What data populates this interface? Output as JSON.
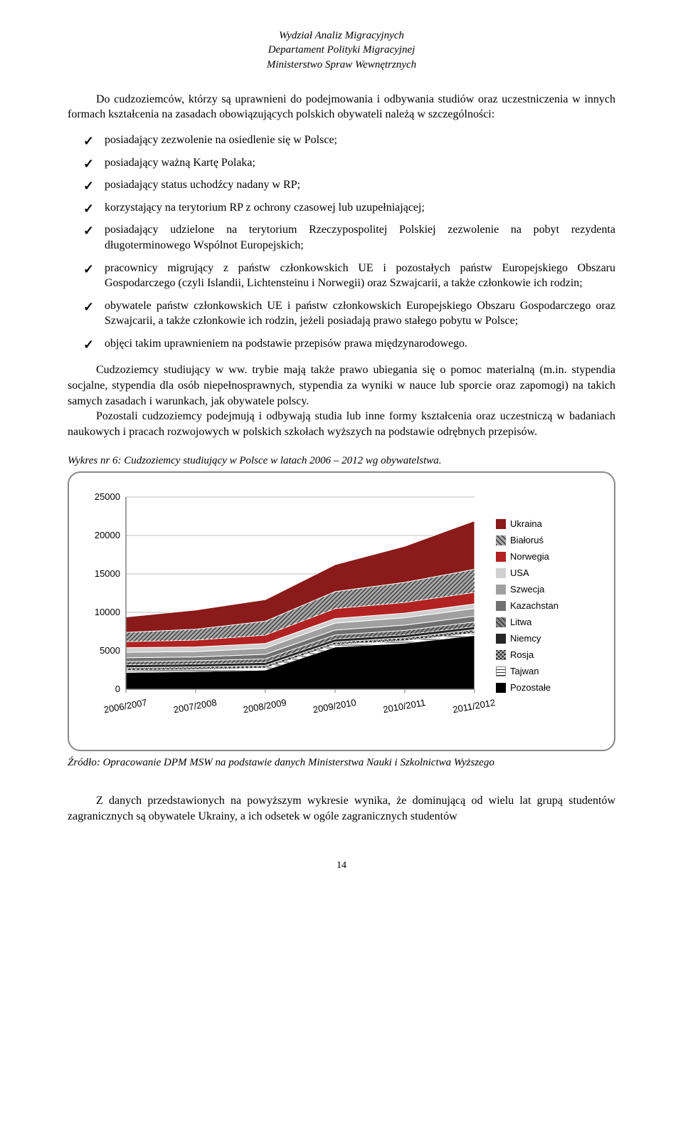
{
  "header": {
    "line1": "Wydział Analiz Migracyjnych",
    "line2": "Departament Polityki Migracyjnej",
    "line3": "Ministerstwo Spraw Wewnętrznych"
  },
  "intro": "Do cudzoziemców, którzy są uprawnieni do podejmowania i odbywania studiów oraz uczestniczenia w innych formach kształcenia na zasadach obowiązujących polskich obywateli należą w szczególności:",
  "bullets": [
    "posiadający zezwolenie na osiedlenie się w Polsce;",
    "posiadający ważną Kartę Polaka;",
    "posiadający status uchodźcy nadany w RP;",
    "korzystający na terytorium RP z ochrony czasowej lub uzupełniającej;",
    "posiadający udzielone na terytorium Rzeczypospolitej Polskiej zezwolenie na pobyt rezydenta długoterminowego Wspólnot Europejskich;",
    "pracownicy migrujący z państw członkowskich UE i pozostałych państw Europejskiego Obszaru Gospodarczego (czyli Islandii, Lichtensteinu i Norwegii) oraz Szwajcarii, a także członkowie ich rodzin;",
    "obywatele państw członkowskich UE i państw członkowskich Europejskiego Obszaru Gospodarczego oraz Szwajcarii, a także członkowie ich rodzin, jeżeli posiadają prawo stałego pobytu w Polsce;",
    "objęci takim uprawnieniem na podstawie przepisów prawa międzynarodowego."
  ],
  "body1": "Cudzoziemcy studiujący w ww. trybie mają także prawo ubiegania się o pomoc materialną (m.in. stypendia socjalne, stypendia dla osób niepełnosprawnych, stypendia za wyniki w nauce lub sporcie oraz zapomogi) na takich samych zasadach i warunkach, jak obywatele polscy.",
  "body2": "Pozostali cudzoziemcy podejmują i odbywają studia lub inne formy kształcenia oraz uczestniczą w badaniach naukowych i pracach rozwojowych w polskich szkołach wyższych na podstawie odrębnych przepisów.",
  "chart_caption": "Wykres nr 6: Cudzoziemcy studiujący w Polsce w latach 2006 – 2012 wg obywatelstwa.",
  "chart": {
    "type": "stacked-area",
    "categories": [
      "2006/2007",
      "2007/2008",
      "2008/2009",
      "2009/2010",
      "2010/2011",
      "2011/2012"
    ],
    "ylim": [
      0,
      25000
    ],
    "ytick_step": 5000,
    "background_color": "#ffffff",
    "grid_color": "#bfbfbf",
    "axis_color": "#808080",
    "series_order_top_to_bottom": [
      "Ukraina",
      "Białoruś",
      "Norwegia",
      "USA",
      "Szwecja",
      "Kazachstan",
      "Litwa",
      "Niemcy",
      "Rosja",
      "Tajwan",
      "Pozostałe"
    ],
    "series": {
      "Ukraina": {
        "fill": "#8b1a1a",
        "pattern": "solid",
        "values": [
          2000,
          2500,
          2800,
          3500,
          4700,
          6300
        ]
      },
      "Białoruś": {
        "fill": "#a8a8a8",
        "pattern": "diag",
        "values": [
          1200,
          1400,
          1800,
          2200,
          2600,
          3000
        ]
      },
      "Norwegia": {
        "fill": "#b22222",
        "pattern": "solid",
        "values": [
          800,
          900,
          1100,
          1300,
          1400,
          1500
        ]
      },
      "USA": {
        "fill": "#d0d0d0",
        "pattern": "solid",
        "values": [
          600,
          600,
          600,
          600,
          600,
          600
        ]
      },
      "Szwecja": {
        "fill": "#a0a0a0",
        "pattern": "solid",
        "values": [
          700,
          700,
          800,
          900,
          950,
          1000
        ]
      },
      "Kazachstan": {
        "fill": "#707070",
        "pattern": "solid",
        "values": [
          500,
          500,
          600,
          650,
          700,
          750
        ]
      },
      "Litwa": {
        "fill": "#888888",
        "pattern": "diag",
        "values": [
          400,
          400,
          450,
          500,
          550,
          600
        ]
      },
      "Niemcy": {
        "fill": "#262626",
        "pattern": "solid",
        "values": [
          400,
          400,
          400,
          400,
          400,
          400
        ]
      },
      "Rosja": {
        "fill": "#303030",
        "pattern": "cross",
        "values": [
          350,
          350,
          350,
          350,
          400,
          450
        ]
      },
      "Tajwan": {
        "fill": "#ffffff",
        "pattern": "horiz",
        "values": [
          250,
          250,
          250,
          300,
          300,
          300
        ]
      },
      "Pozostałe": {
        "fill": "#000000",
        "pattern": "solid",
        "values": [
          2200,
          2300,
          2500,
          5500,
          6000,
          7000
        ]
      }
    },
    "legend": [
      {
        "label": "Ukraina",
        "fill": "#8b1a1a",
        "pattern": "solid"
      },
      {
        "label": "Białoruś",
        "fill": "#a8a8a8",
        "pattern": "diag"
      },
      {
        "label": "Norwegia",
        "fill": "#b22222",
        "pattern": "solid"
      },
      {
        "label": "USA",
        "fill": "#d0d0d0",
        "pattern": "solid"
      },
      {
        "label": "Szwecja",
        "fill": "#a0a0a0",
        "pattern": "solid"
      },
      {
        "label": "Kazachstan",
        "fill": "#707070",
        "pattern": "solid"
      },
      {
        "label": "Litwa",
        "fill": "#888888",
        "pattern": "diag"
      },
      {
        "label": "Niemcy",
        "fill": "#262626",
        "pattern": "solid"
      },
      {
        "label": "Rosja",
        "fill": "#303030",
        "pattern": "cross"
      },
      {
        "label": "Tajwan",
        "fill": "#ffffff",
        "pattern": "horiz"
      },
      {
        "label": "Pozostałe",
        "fill": "#000000",
        "pattern": "solid"
      }
    ]
  },
  "source": "Źródło: Opracowanie DPM MSW na podstawie danych Ministerstwa Nauki i Szkolnictwa Wyższego",
  "closing": "Z danych przedstawionych na powyższym wykresie wynika, że dominującą od wielu lat grupą studentów zagranicznych są obywatele Ukrainy, a ich odsetek w ogóle zagranicznych studentów",
  "page_number": "14"
}
